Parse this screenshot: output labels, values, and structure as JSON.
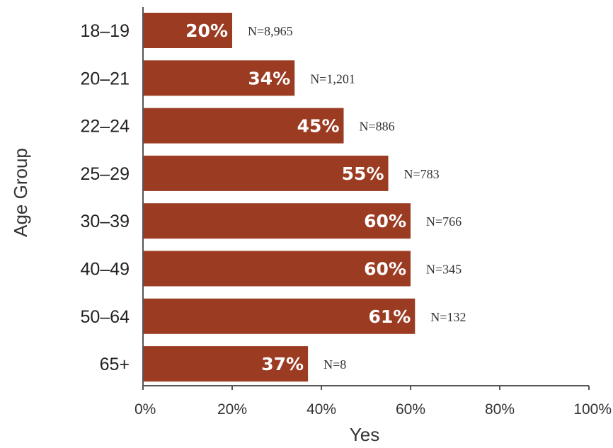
{
  "chart_data": {
    "type": "bar",
    "orientation": "horizontal",
    "categories": [
      "18–19",
      "20–21",
      "22–24",
      "25–29",
      "30–39",
      "40–49",
      "50–64",
      "65+"
    ],
    "values": [
      20,
      34,
      45,
      55,
      60,
      60,
      61,
      37
    ],
    "value_labels": [
      "20%",
      "34%",
      "45%",
      "55%",
      "60%",
      "60%",
      "61%",
      "37%"
    ],
    "n_labels": [
      "N=8,965",
      "N=1,201",
      "N=886",
      "N=783",
      "N=766",
      "N=345",
      "N=132",
      "N=8"
    ],
    "xlabel": "Yes",
    "ylabel": "Age Group",
    "xlim": [
      0,
      100
    ],
    "x_ticks": [
      "0%",
      "20%",
      "40%",
      "60%",
      "80%",
      "100%"
    ],
    "grid": false,
    "legend": "none",
    "bar_color": "#9b3b22",
    "axis_color": "#555555"
  }
}
